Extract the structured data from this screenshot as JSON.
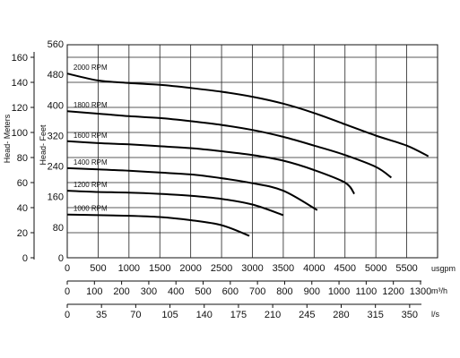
{
  "chart_data": {
    "type": "line",
    "title": "",
    "ylabel": "Head- Meters",
    "ylabel_secondary": "Head- Feet",
    "meters_axis": {
      "ticks": [
        "0",
        "20",
        "40",
        "60",
        "80",
        "100",
        "120",
        "140",
        "160"
      ],
      "ylim": [
        0,
        170
      ]
    },
    "feet_axis": {
      "ticks": [
        "0",
        "80",
        "160",
        "240",
        "320",
        "400",
        "480",
        "560"
      ]
    },
    "xaxis_usgpm": {
      "unit": "usgpm",
      "ticks": [
        "0",
        "500",
        "1000",
        "1500",
        "2000",
        "2500",
        "3000",
        "3500",
        "4000",
        "4500",
        "5000",
        "5500"
      ],
      "xlim": [
        0,
        6000
      ]
    },
    "xaxis_m3h": {
      "unit": "m³/h",
      "ticks": [
        "0",
        "100",
        "200",
        "300",
        "400",
        "500",
        "600",
        "700",
        "800",
        "900",
        "1000",
        "1100",
        "1200",
        "1300"
      ]
    },
    "xaxis_ls": {
      "unit": "l/s",
      "ticks": [
        "0",
        "35",
        "70",
        "105",
        "140",
        "175",
        "210",
        "245",
        "280",
        "315",
        "350"
      ]
    },
    "grid": true,
    "series": [
      {
        "name": "2000 RPM",
        "x": [
          0,
          500,
          1000,
          1500,
          2000,
          2500,
          3000,
          3500,
          4000,
          4500,
          5000,
          5500,
          5850
        ],
        "y": [
          147,
          141.5,
          139.5,
          138,
          135.5,
          132.5,
          128.5,
          123,
          115.5,
          106.5,
          97.5,
          89.5,
          81
        ]
      },
      {
        "name": "1800 RPM",
        "x": [
          0,
          500,
          1000,
          1500,
          2000,
          2500,
          3000,
          3500,
          4000,
          4500,
          5000,
          5250
        ],
        "y": [
          117,
          115,
          113,
          111.5,
          109,
          106,
          102,
          96.5,
          89.5,
          82,
          72.5,
          64
        ]
      },
      {
        "name": "1600 RPM",
        "x": [
          0,
          500,
          1000,
          1500,
          2000,
          2500,
          3000,
          3500,
          4000,
          4500,
          4650
        ],
        "y": [
          93,
          91.5,
          90.5,
          89,
          87.5,
          85,
          82,
          77.5,
          70,
          60,
          51
        ]
      },
      {
        "name": "1400 RPM",
        "x": [
          0,
          500,
          1000,
          1500,
          2000,
          2500,
          3000,
          3500,
          4050
        ],
        "y": [
          71.5,
          70.5,
          69.5,
          68,
          66.5,
          63.5,
          59.5,
          53.5,
          38
        ]
      },
      {
        "name": "1200 RPM",
        "x": [
          0,
          500,
          1000,
          1500,
          2000,
          2500,
          3000,
          3500
        ],
        "y": [
          53.5,
          52.5,
          52,
          51,
          49.5,
          47,
          42.5,
          34
        ]
      },
      {
        "name": "1000 RPM",
        "x": [
          0,
          500,
          1000,
          1500,
          2000,
          2500,
          2950
        ],
        "y": [
          34.5,
          34,
          33.5,
          32.5,
          30,
          26,
          17.5
        ]
      }
    ]
  }
}
